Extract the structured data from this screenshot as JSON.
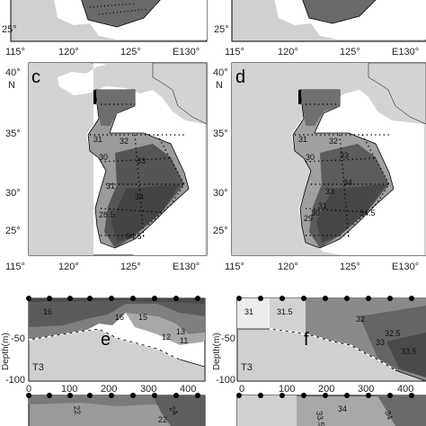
{
  "map_axes": {
    "lon_ticks": [
      "115°",
      "120°",
      "125°",
      "E130°"
    ],
    "lat_ticks": [
      "40°",
      "35°",
      "30°",
      "25°"
    ],
    "north_label": "N",
    "top_row_lat_tick": "25°"
  },
  "panels": {
    "c": {
      "label": "c",
      "contours": [
        "31",
        "32",
        "30",
        "33",
        "31",
        "34",
        "28.5",
        "34.5"
      ]
    },
    "d": {
      "label": "d",
      "contours": [
        "31",
        "32",
        "30",
        "33",
        "33",
        "34",
        "29",
        "30",
        "31",
        "34.5"
      ]
    },
    "e": {
      "label": "e",
      "transect": "T3",
      "contours": [
        "16",
        "16",
        "15",
        "13",
        "12",
        "11"
      ]
    },
    "f": {
      "label": "f",
      "transect": "T3",
      "contours": [
        "31",
        "31.5",
        "32",
        "32.5",
        "33",
        "33.5"
      ]
    },
    "g": {
      "contours": [
        "22",
        "22",
        "24"
      ]
    },
    "h": {
      "contours": [
        "33.5",
        "34",
        "34"
      ]
    }
  },
  "section_axes": {
    "ylabel": "Depth(m)",
    "y_ticks": [
      "-50",
      "-100"
    ],
    "x_ticks": [
      "0",
      "100",
      "200",
      "300",
      "400"
    ]
  }
}
